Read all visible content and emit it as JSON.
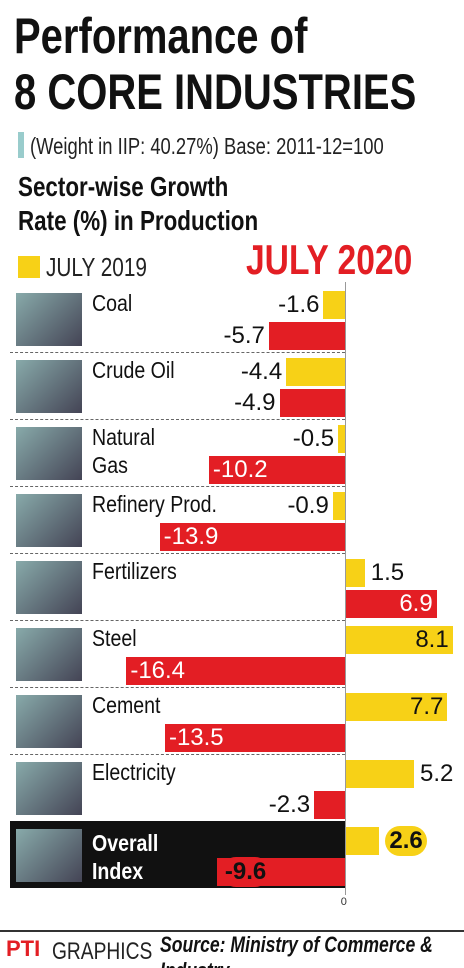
{
  "title": "Performance of\n8 CORE INDUSTRIES",
  "subtitle": "(Weight in IIP: 40.27%) Base: 2011-12=100",
  "chart_data": {
    "type": "bar",
    "orientation": "horizontal",
    "title": "Sector-wise Growth\nRate (%) in Production",
    "categories": [
      "Coal",
      "Crude Oil",
      "Natural\nGas",
      "Refinery Prod.",
      "Fertilizers",
      "Steel",
      "Cement",
      "Electricity",
      "Overall\nIndex"
    ],
    "series": [
      {
        "name": "JULY 2019",
        "color": "#f7d117",
        "values": [
          -1.6,
          -4.4,
          -0.5,
          -0.9,
          1.5,
          8.1,
          7.7,
          5.2,
          2.6
        ]
      },
      {
        "name": "JULY 2020",
        "color": "#e31e24",
        "values": [
          -5.7,
          -4.9,
          -10.2,
          -13.9,
          6.9,
          -16.4,
          -13.5,
          -2.3,
          -9.6
        ]
      }
    ],
    "xlim": [
      -16.5,
      8.5
    ],
    "xticks": [
      0
    ]
  },
  "footer": {
    "logo": "PTI",
    "brand": "GRAPHICS",
    "source": "Source: Ministry of Commerce & Industry"
  }
}
